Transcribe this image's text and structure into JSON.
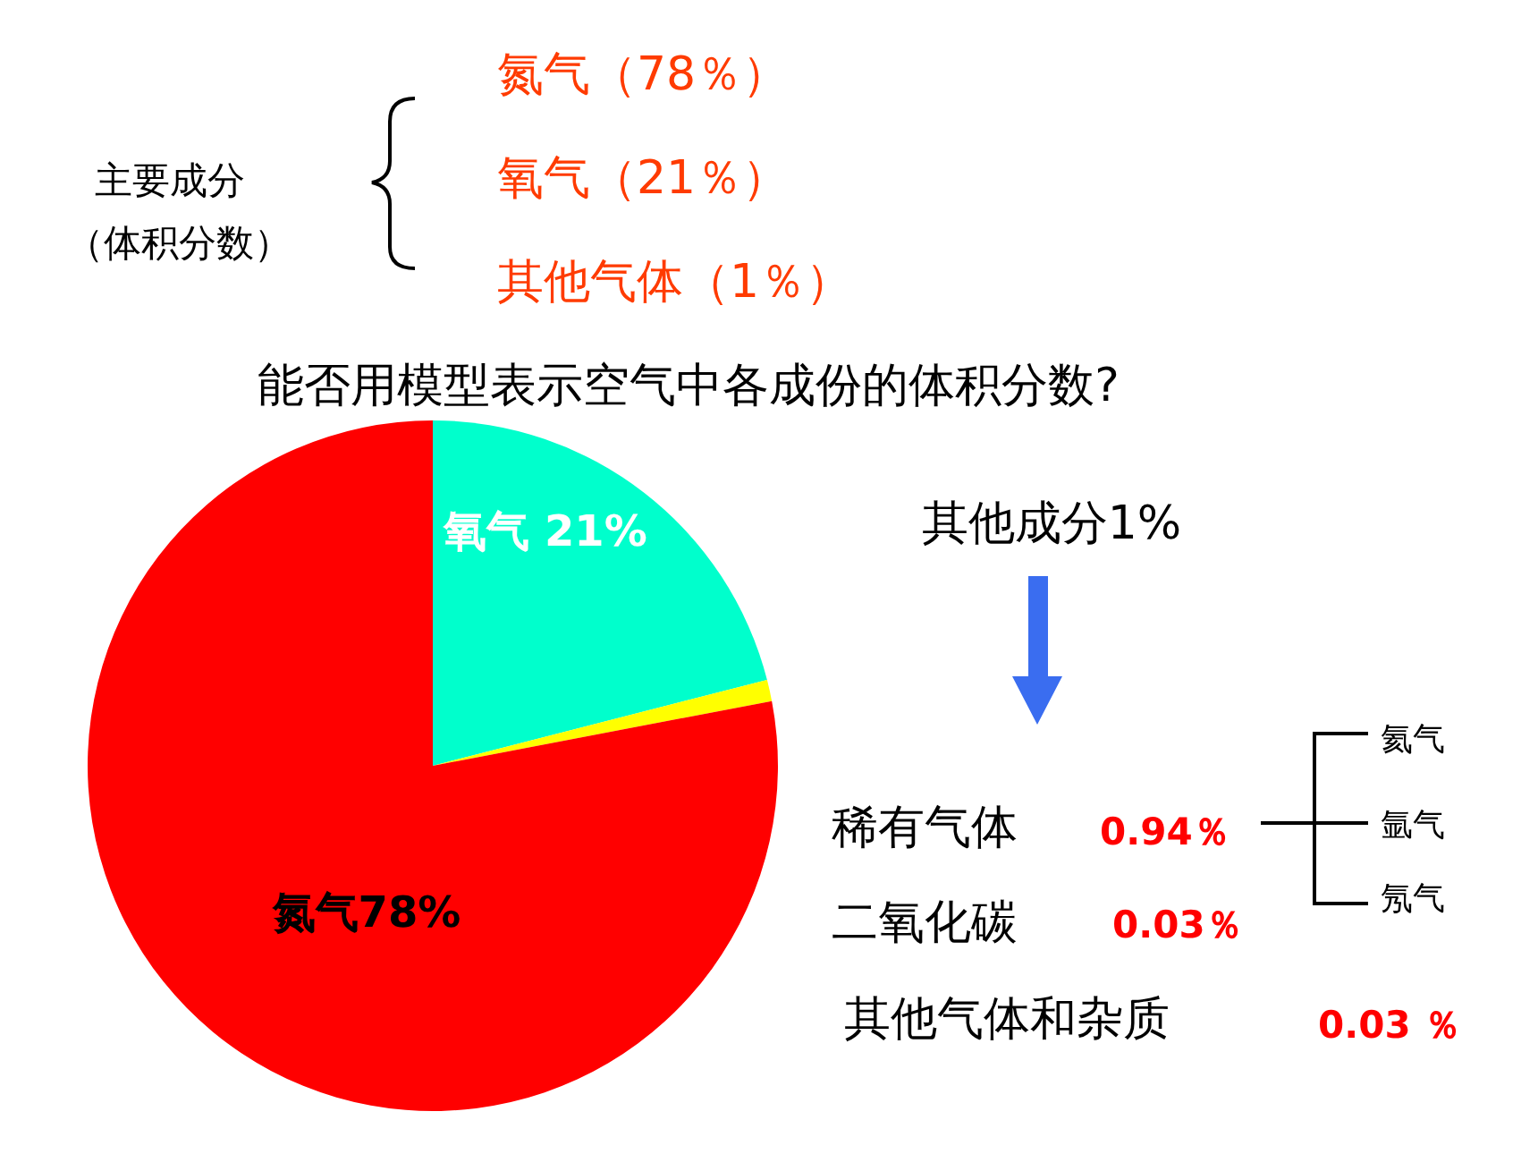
{
  "chart_data": {
    "type": "pie",
    "title": "能否用模型表示空气中各成份的体积分数?",
    "categories": [
      "氧气 21%",
      null,
      "氮气78%"
    ],
    "values": [
      21,
      1,
      78
    ],
    "colors": [
      "#00ffcc",
      "#ffff00",
      "#ff0000"
    ],
    "annotations": [
      "主要成分",
      "（体积分数）",
      "氮气（78％）",
      "氧气（21％）",
      "其他气体（1％）",
      "其他成分1%",
      "稀有气体",
      "0.94％",
      "二氧化碳",
      "0.03％",
      "其他气体和杂质",
      "0.03 ％",
      "氦气",
      "氩气",
      "氖气"
    ]
  }
}
